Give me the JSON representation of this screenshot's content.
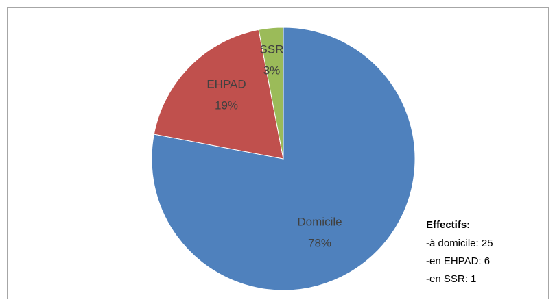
{
  "chart_data": {
    "type": "pie",
    "categories": [
      "Domicile",
      "EHPAD",
      "SSR"
    ],
    "values": [
      78,
      19,
      3
    ],
    "value_labels": [
      "78%",
      "19%",
      "3%"
    ],
    "colors": [
      "#4f81bd",
      "#c0504d",
      "#9bbb59"
    ],
    "annotation": {
      "title": "Effectifs:",
      "lines": [
        "-à domicile: 25",
        "-en EHPAD: 6",
        "-en SSR: 1"
      ]
    }
  }
}
